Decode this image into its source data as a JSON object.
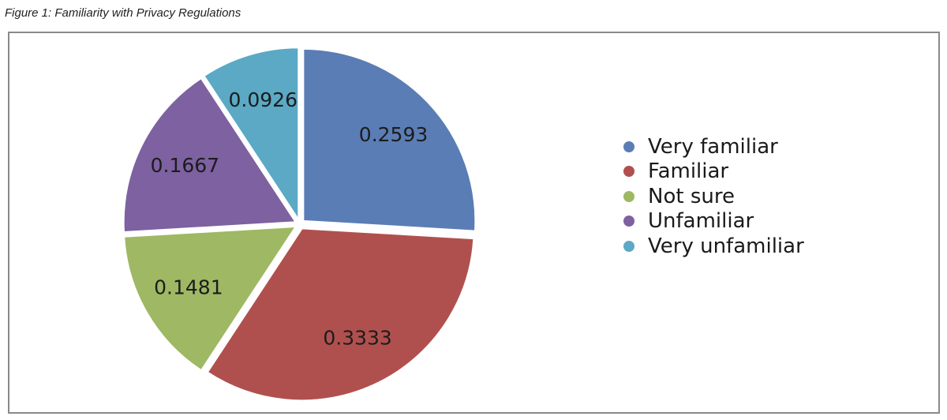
{
  "figure_caption": "Figure 1: Familiarity with Privacy Regulations",
  "chart_data": {
    "type": "pie",
    "title": "",
    "categories": [
      "Very familiar",
      "Familiar",
      "Not sure",
      "Unfamiliar",
      "Very unfamiliar"
    ],
    "values": [
      0.2593,
      0.3333,
      0.1481,
      0.1667,
      0.0926
    ],
    "data_labels": [
      "0.2593",
      "0.3333",
      "0.1481",
      "0.1667",
      "0.0926"
    ],
    "colors": [
      "#5b7db5",
      "#b0504e",
      "#9fb864",
      "#7d61a0",
      "#5ba9c5"
    ],
    "exploded": true,
    "legend_position": "right"
  }
}
